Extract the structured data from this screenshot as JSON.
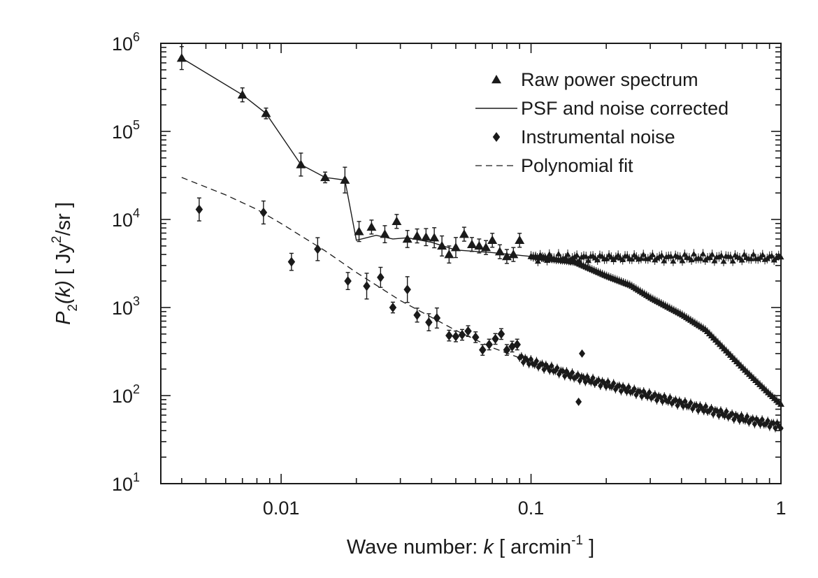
{
  "chart_data": {
    "type": "scatter",
    "title": "",
    "xscale": "log",
    "yscale": "log",
    "xlim": [
      0.0033,
      1.0
    ],
    "ylim": [
      10,
      1000000
    ],
    "xlabel": {
      "prefix": "Wave number: ",
      "var": "k",
      "unit_open": "  [ arcmin",
      "unit_sup": "-1",
      "unit_close": " ]"
    },
    "ylabel": {
      "P": "P",
      "sub": "2",
      "k": "(k)",
      "unit_open": "  [ Jy",
      "unit_sup": "2",
      "unit_close": "/sr ]"
    },
    "x_ticks": [
      {
        "value": 0.01,
        "label": "0.01"
      },
      {
        "value": 0.1,
        "label": "0.1"
      },
      {
        "value": 1,
        "label": "1"
      }
    ],
    "y_ticks": [
      {
        "value": 10,
        "base": "10",
        "exp": "1"
      },
      {
        "value": 100,
        "base": "10",
        "exp": "2"
      },
      {
        "value": 1000,
        "base": "10",
        "exp": "3"
      },
      {
        "value": 10000,
        "base": "10",
        "exp": "4"
      },
      {
        "value": 100000,
        "base": "10",
        "exp": "5"
      },
      {
        "value": 1000000,
        "base": "10",
        "exp": "6"
      }
    ],
    "legend": {
      "position": "top-right",
      "entries": [
        {
          "label": "Raw power spectrum",
          "marker": "triangle"
        },
        {
          "label": "PSF and noise corrected",
          "marker": "solid-line"
        },
        {
          "label": "Instrumental noise",
          "marker": "diamond"
        },
        {
          "label": "Polynomial fit",
          "marker": "dashed-line"
        }
      ]
    },
    "series": [
      {
        "name": "Raw power spectrum",
        "marker": "triangle",
        "x": [
          0.004,
          0.007,
          0.0087,
          0.012,
          0.015,
          0.018,
          0.0205,
          0.023,
          0.026,
          0.029,
          0.032,
          0.035,
          0.038,
          0.041,
          0.044,
          0.047,
          0.05,
          0.054,
          0.058,
          0.062,
          0.066,
          0.07,
          0.075,
          0.08,
          0.085,
          0.09
        ],
        "y": [
          680000,
          260000,
          160000,
          42000,
          30000,
          28000,
          7300,
          8200,
          6800,
          9500,
          6000,
          6500,
          6300,
          6200,
          5000,
          4000,
          4800,
          6800,
          5200,
          5000,
          4800,
          5800,
          4300,
          3800,
          4000,
          5800
        ],
        "yerr_factor": [
          1.35,
          1.2,
          1.15,
          1.35,
          1.15,
          1.4,
          1.3,
          1.2,
          1.25,
          1.2,
          1.25,
          1.2,
          1.25,
          1.3,
          1.3,
          1.25,
          1.3,
          1.2,
          1.2,
          1.2,
          1.2,
          1.2,
          1.2,
          1.2,
          1.2,
          1.2
        ]
      },
      {
        "name": "Instrumental noise",
        "marker": "diamond",
        "x": [
          0.0047,
          0.0085,
          0.011,
          0.014,
          0.0185,
          0.022,
          0.025,
          0.028,
          0.032,
          0.035,
          0.039,
          0.042,
          0.047,
          0.05,
          0.053,
          0.056,
          0.06,
          0.064,
          0.068,
          0.072,
          0.076,
          0.08,
          0.084,
          0.088
        ],
        "y": [
          13000,
          12000,
          3300,
          4600,
          2000,
          1750,
          2200,
          1000,
          1600,
          820,
          680,
          760,
          480,
          470,
          490,
          540,
          460,
          330,
          380,
          440,
          500,
          330,
          360,
          380
        ],
        "yerr_factor": [
          1.35,
          1.35,
          1.25,
          1.35,
          1.25,
          1.4,
          1.3,
          1.15,
          1.4,
          1.2,
          1.25,
          1.3,
          1.15,
          1.15,
          1.15,
          1.15,
          1.15,
          1.15,
          1.15,
          1.15,
          1.15,
          1.15,
          1.15,
          1.15
        ]
      },
      {
        "name": "Raw power spectrum (high k)",
        "marker": "triangle-small",
        "x_range": [
          0.1,
          1.0
        ],
        "y_level": 3700,
        "count": 110
      },
      {
        "name": "PSF and noise corrected",
        "marker": "solid-line",
        "x": [
          0.004,
          0.007,
          0.0087,
          0.012,
          0.015,
          0.018,
          0.02,
          0.024,
          0.028,
          0.032,
          0.04,
          0.05,
          0.07,
          0.1,
          0.15,
          0.2,
          0.25,
          0.3,
          0.4,
          0.5,
          0.6,
          0.7,
          0.8,
          0.9,
          1.0
        ],
        "y": [
          680000,
          260000,
          160000,
          42000,
          30000,
          28000,
          5800,
          6600,
          6000,
          6200,
          5500,
          4500,
          4200,
          3800,
          3300,
          2300,
          1800,
          1300,
          840,
          560,
          330,
          210,
          145,
          105,
          80
        ]
      },
      {
        "name": "Polynomial fit",
        "marker": "dashed-line",
        "x": [
          0.004,
          0.006,
          0.008,
          0.01,
          0.015,
          0.02,
          0.03,
          0.05,
          0.07,
          0.1,
          0.15,
          0.2,
          0.3,
          0.5,
          0.7,
          1.0
        ],
        "y": [
          30000,
          19000,
          13000,
          9000,
          4400,
          2500,
          1200,
          550,
          350,
          240,
          165,
          135,
          100,
          70,
          55,
          45
        ]
      }
    ]
  }
}
